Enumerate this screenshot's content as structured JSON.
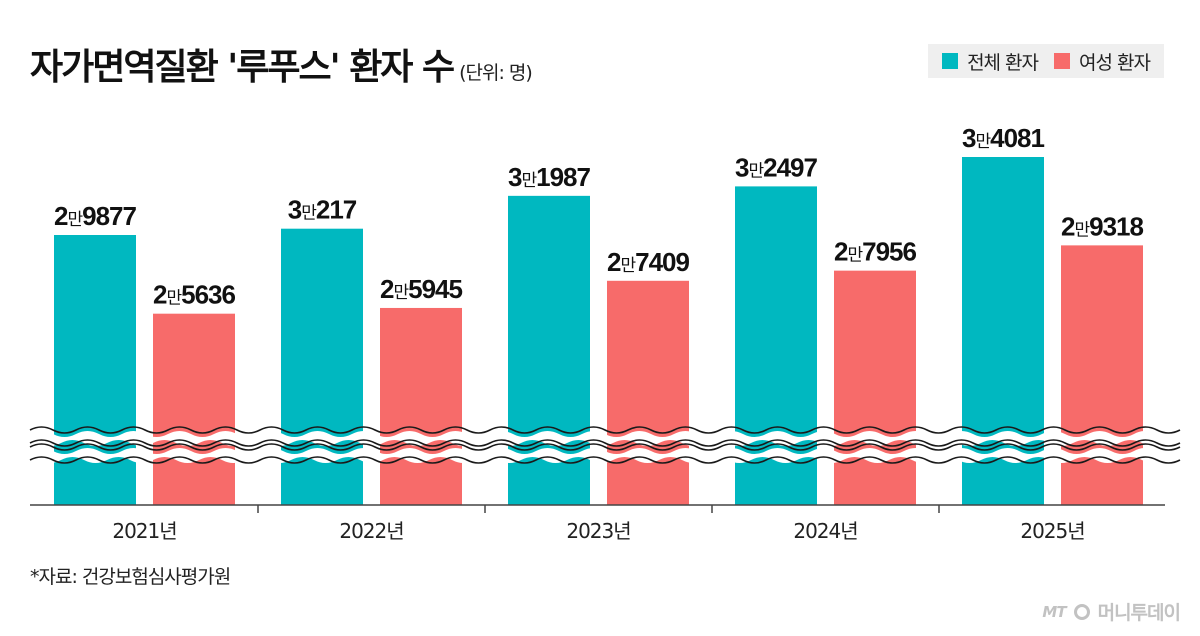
{
  "header": {
    "title": "자가면역질환 '루푸스' 환자 수",
    "unit": "(단위: 명)"
  },
  "legend": {
    "items": [
      {
        "label": "전체 환자",
        "color": "#00b8c0"
      },
      {
        "label": "여성 환자",
        "color": "#f76b6a"
      }
    ]
  },
  "chart_data": {
    "type": "bar",
    "title": "자가면역질환 '루푸스' 환자 수",
    "unit": "(단위: 명)",
    "categories": [
      "2021년",
      "2022년",
      "2023년",
      "2024년",
      "2025년"
    ],
    "axis_break": true,
    "series": [
      {
        "name": "전체 환자",
        "color": "#00b8c0",
        "values": [
          29877,
          30217,
          31987,
          32497,
          34081
        ],
        "labels": [
          [
            "2",
            "9877"
          ],
          [
            "3",
            "217"
          ],
          [
            "3",
            "1987"
          ],
          [
            "3",
            "2497"
          ],
          [
            "3",
            "4081"
          ]
        ]
      },
      {
        "name": "여성 환자",
        "color": "#f76b6a",
        "values": [
          25636,
          25945,
          27409,
          27956,
          29318
        ],
        "labels": [
          [
            "2",
            "5636"
          ],
          [
            "2",
            "5945"
          ],
          [
            "2",
            "7409"
          ],
          [
            "2",
            "7956"
          ],
          [
            "2",
            "9318"
          ]
        ]
      }
    ],
    "label_unit": "만"
  },
  "footer": {
    "source": "*자료: 건강보험심사평가원",
    "logo_mt": "MT",
    "logo_text": "머니투데이"
  }
}
